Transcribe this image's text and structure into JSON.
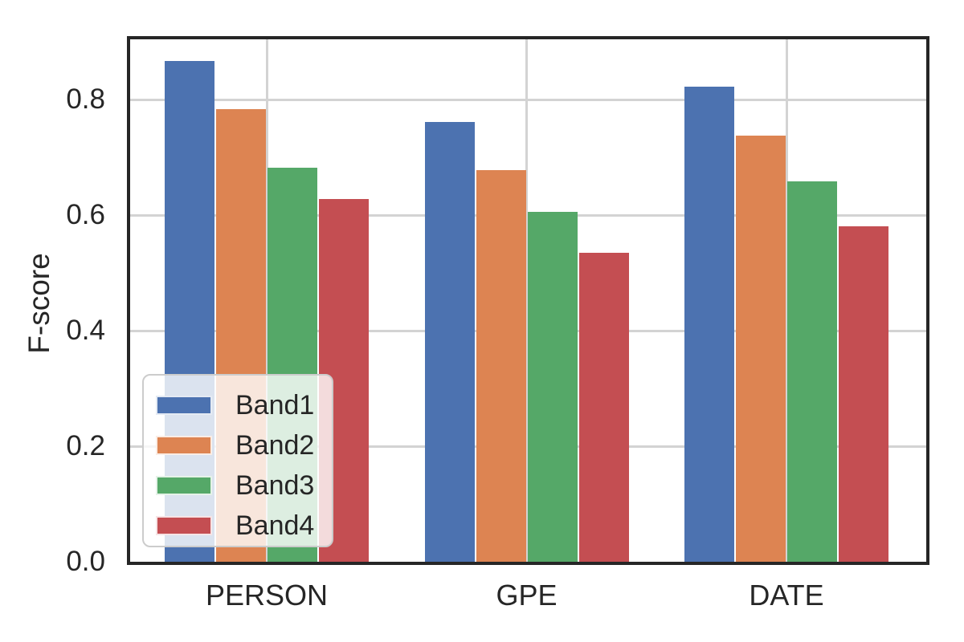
{
  "chart_data": {
    "type": "bar",
    "title": "",
    "xlabel": "",
    "ylabel": "F-score",
    "categories": [
      "PERSON",
      "GPE",
      "DATE"
    ],
    "series": [
      {
        "name": "Band1",
        "color": "#4C72B0",
        "values": [
          0.866,
          0.761,
          0.822
        ]
      },
      {
        "name": "Band2",
        "color": "#DD8452",
        "values": [
          0.783,
          0.678,
          0.737
        ]
      },
      {
        "name": "Band3",
        "color": "#55A868",
        "values": [
          0.682,
          0.605,
          0.658
        ]
      },
      {
        "name": "Band4",
        "color": "#C44E52",
        "values": [
          0.628,
          0.535,
          0.58
        ]
      }
    ],
    "ylim": [
      0,
      0.905
    ],
    "yticks": [
      0,
      0.2,
      0.4,
      0.6,
      0.8
    ],
    "ytick_labels": [
      "0.0",
      "0.2",
      "0.4",
      "0.6",
      "0.8"
    ],
    "grid": true,
    "grid_axes": "both",
    "legend": {
      "position": "lower left",
      "entries": [
        "Band1",
        "Band2",
        "Band3",
        "Band4"
      ]
    },
    "style_colors": {
      "grid": "#d3d3d3",
      "spine": "#262626",
      "text": "#262626",
      "legend_border": "#cccccc",
      "legend_background": "rgba(255,255,255,0.8)",
      "plot_background": "#ffffff"
    }
  }
}
